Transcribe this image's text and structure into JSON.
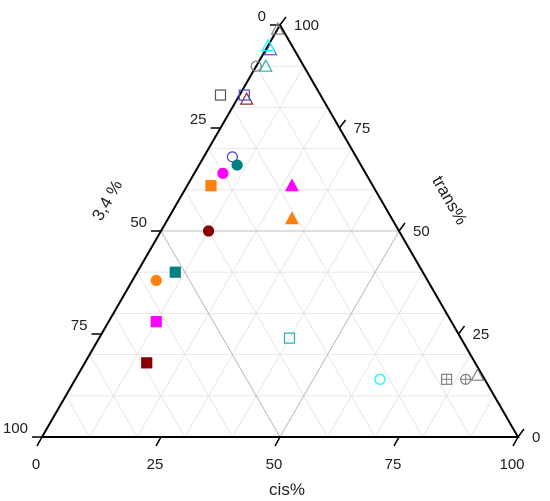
{
  "chart_data": {
    "type": "scatter",
    "subtype": "ternary",
    "axes": {
      "bottom": {
        "label": "cis%",
        "ticks": [
          "0",
          "25",
          "50",
          "75",
          "100"
        ]
      },
      "left": {
        "label": "3,4 %",
        "ticks": [
          "100",
          "75",
          "50",
          "25",
          "0"
        ]
      },
      "right": {
        "label": "trans%",
        "ticks": [
          "0",
          "25",
          "50",
          "75",
          "100"
        ]
      },
      "range": [
        0,
        100
      ],
      "grid": true,
      "grid_step": 10
    },
    "points": [
      {
        "cis": 0,
        "trans": 99,
        "v34": 1,
        "marker": "triangle-open",
        "color": "#808080"
      },
      {
        "cis": 1,
        "trans": 94,
        "v34": 5,
        "marker": "triangle-open",
        "color": "#5b5bd6"
      },
      {
        "cis": 0,
        "trans": 95,
        "v34": 5,
        "marker": "triangle-open",
        "color": "#00ffff"
      },
      {
        "cis": 2,
        "trans": 90,
        "v34": 8,
        "marker": "triangle-open",
        "color": "#20b2aa"
      },
      {
        "cis": 0,
        "trans": 90,
        "v34": 10,
        "marker": "circle-open",
        "color": "#808080"
      },
      {
        "cis": 2,
        "trans": 82,
        "v34": 16,
        "marker": "triangle-open",
        "color": "#8b2e2e"
      },
      {
        "cis": 1,
        "trans": 83,
        "v34": 16,
        "marker": "square-open",
        "color": "#4a4ad6"
      },
      {
        "cis": -4,
        "trans": 83,
        "v34": 21,
        "marker": "square-open",
        "color": "#555555"
      },
      {
        "cis": 6,
        "trans": 68,
        "v34": 26,
        "marker": "circle-open",
        "color": "#4a4ad6"
      },
      {
        "cis": 8,
        "trans": 66,
        "v34": 26,
        "marker": "circle-filled",
        "color": "#008080"
      },
      {
        "cis": 6,
        "trans": 64,
        "v34": 30,
        "marker": "circle-filled",
        "color": "#ff00ff"
      },
      {
        "cis": 5,
        "trans": 61,
        "v34": 34,
        "marker": "square-filled",
        "color": "#ff7f0e"
      },
      {
        "cis": 22,
        "trans": 61,
        "v34": 17,
        "marker": "triangle-filled",
        "color": "#ff00ff"
      },
      {
        "cis": 26,
        "trans": 53,
        "v34": 21,
        "marker": "triangle-filled",
        "color": "#ff7f0e"
      },
      {
        "cis": 10,
        "trans": 50,
        "v34": 40,
        "marker": "circle-filled",
        "color": "#8b0000"
      },
      {
        "cis": 8,
        "trans": 40,
        "v34": 52,
        "marker": "square-filled",
        "color": "#008080"
      },
      {
        "cis": 5,
        "trans": 38,
        "v34": 57,
        "marker": "circle-filled",
        "color": "#ff7f0e"
      },
      {
        "cis": 10,
        "trans": 28,
        "v34": 62,
        "marker": "square-filled",
        "color": "#ff00ff"
      },
      {
        "cis": 13,
        "trans": 18,
        "v34": 69,
        "marker": "square-filled",
        "color": "#8b0000"
      },
      {
        "cis": 40,
        "trans": 24,
        "v34": 36,
        "marker": "square-open",
        "color": "#20b2aa"
      },
      {
        "cis": 64,
        "trans": 14,
        "v34": 22,
        "marker": "circle-open",
        "color": "#00ffff"
      },
      {
        "cis": 78,
        "trans": 14,
        "v34": 8,
        "marker": "square-crossed",
        "color": "#808080"
      },
      {
        "cis": 82,
        "trans": 14,
        "v34": 4,
        "marker": "circle-crossed",
        "color": "#808080"
      },
      {
        "cis": 84,
        "trans": 15,
        "v34": 1,
        "marker": "triangle-open",
        "color": "#808080"
      }
    ]
  }
}
